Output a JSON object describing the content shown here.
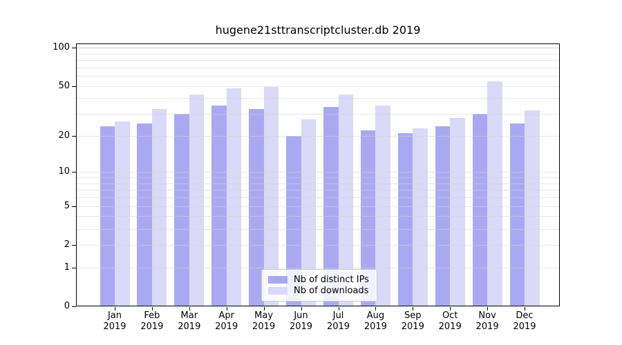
{
  "title": "hugene21sttranscriptcluster.db 2019",
  "chart_data": {
    "type": "bar",
    "title": "hugene21sttranscriptcluster.db 2019",
    "categories": [
      "Jan",
      "Feb",
      "Mar",
      "Apr",
      "May",
      "Jun",
      "Jul",
      "Aug",
      "Sep",
      "Oct",
      "Nov",
      "Dec"
    ],
    "x_tick_second_line": "2019",
    "series": [
      {
        "name": "Nb of distinct IPs",
        "color": "#a9a9f2",
        "values": [
          24,
          25,
          30,
          35,
          33,
          20,
          34,
          22,
          21,
          24,
          30,
          25
        ]
      },
      {
        "name": "Nb of downloads",
        "color": "#d9d9f8",
        "values": [
          26,
          33,
          43,
          48,
          49,
          27,
          43,
          35,
          23,
          28,
          54,
          32
        ]
      }
    ],
    "y_scale": "log1p",
    "ylim": [
      0,
      108
    ],
    "y_ticks": [
      0,
      1,
      2,
      5,
      10,
      20,
      50,
      100
    ],
    "y_tick_labels": [
      "0",
      "1",
      "2",
      "5",
      "10",
      "20",
      "50",
      "100"
    ],
    "grid_values": [
      1,
      2,
      3,
      4,
      5,
      6,
      7,
      8,
      9,
      10,
      20,
      30,
      40,
      50,
      60,
      70,
      80,
      90,
      100
    ],
    "grid": "on",
    "legend_position": "lower center"
  },
  "legend": {
    "items": [
      {
        "label": "Nb of distinct IPs",
        "color": "#a9a9f2"
      },
      {
        "label": "Nb of downloads",
        "color": "#d9d9f8"
      }
    ]
  }
}
